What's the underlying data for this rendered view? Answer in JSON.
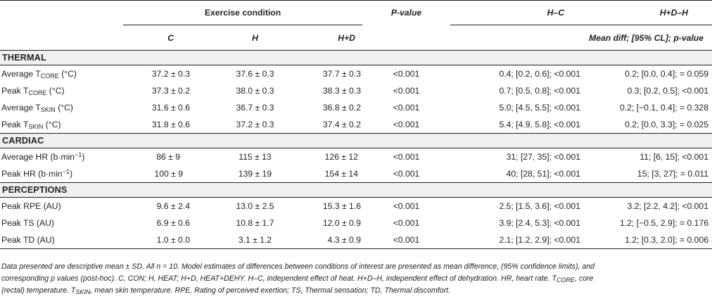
{
  "header": {
    "exercise_condition": "Exercise condition",
    "p_value": "P-value",
    "h_c": "H–C",
    "h_d_h": "H+D–H",
    "col_c": "C",
    "col_h": "H",
    "col_hd": "H+D",
    "mean_diff": "Mean diff; [95% CL]; p-value"
  },
  "sections": {
    "thermal": "THERMAL",
    "cardiac": "CARDIAC",
    "perceptions": "PERCEPTIONS"
  },
  "rows": {
    "avg_tcore": {
      "label_pre": "Average T",
      "label_sub": "CORE",
      "label_post": " (°C)",
      "c": "37.2 ± 0.3",
      "h": "37.6 ± 0.3",
      "hd": "37.7 ± 0.3",
      "p": "<0.001",
      "hc": "0.4; [0.2, 0.6]; <0.001",
      "hdh": "0.2; [0.0, 0.4]; = 0.059"
    },
    "peak_tcore": {
      "label_pre": "Peak T",
      "label_sub": "CORE",
      "label_post": " (°C)",
      "c": "37.3 ± 0.2",
      "h": "38.0 ± 0.3",
      "hd": "38.3 ± 0.3",
      "p": "<0.001",
      "hc": "0.7; [0.5, 0.8]; <0.001",
      "hdh": "0.3; [0.2, 0.5]; <0.001"
    },
    "avg_tskin": {
      "label_pre": "Average T",
      "label_sub": "SKIN",
      "label_post": " (°C)",
      "c": "31.6 ± 0.6",
      "h": "36.7 ± 0.3",
      "hd": "36.8 ± 0.2",
      "p": "<0.001",
      "hc": "5.0; [4.5, 5.5]; <0.001",
      "hdh": "0.2; [−0.1, 0.4]; = 0.328"
    },
    "peak_tskin": {
      "label_pre": "Peak T",
      "label_sub": "SKIN",
      "label_post": " (°C)",
      "c": "31.8 ± 0.6",
      "h": "37.2 ± 0.3",
      "hd": "37.4 ± 0.2",
      "p": "<0.001",
      "hc": "5.4; [4.9, 5.8]; <0.001",
      "hdh": "0.2; [0.0, 3.3]; = 0.025"
    },
    "avg_hr": {
      "label_pre": "Average HR (b·min",
      "label_sup": "−1",
      "label_post": ")",
      "c": "86 ± 9",
      "h": "115 ± 13",
      "hd": "126 ± 12",
      "p": "<0.001",
      "hc": "31; [27, 35]; <0.001",
      "hdh": "11; [6, 15]; <0.001"
    },
    "peak_hr": {
      "label_pre": "Peak HR (b·min",
      "label_sup": "−1",
      "label_post": ")",
      "c": "100 ± 9",
      "h": "139 ± 19",
      "hd": "154 ± 14",
      "p": "<0.001",
      "hc": "40; [28, 51]; <0.001",
      "hdh": "15; [3, 27]; = 0.011"
    },
    "peak_rpe": {
      "label": "Peak RPE (AU)",
      "c": "9.6 ± 2.4",
      "h": "13.0 ± 2.5",
      "hd": "15.3 ± 1.6",
      "p": "<0.001",
      "hc": "2.5; [1.5, 3.6]; <0.001",
      "hdh": "3.2; [2.2, 4.2]; <0.001"
    },
    "peak_ts": {
      "label": "Peak TS (AU)",
      "c": "6.9 ± 0.6",
      "h": "10.8 ± 1.7",
      "hd": "12.0 ± 0.9",
      "p": "<0.001",
      "hc": "3.9; [2.4, 5.3]; <0.001",
      "hdh": "1.2; [−0.5, 2.9]; = 0.176"
    },
    "peak_td": {
      "label": "Peak TD (AU)",
      "c": "1.0 ± 0.0",
      "h": "3.1 ± 1.2",
      "hd": "4.3 ± 0.9",
      "p": "<0.001",
      "hc": "2.1; [1.2, 2.9]; <0.001",
      "hdh": "1.2; [0.3, 2.0]; = 0.006"
    }
  },
  "footnote": {
    "line1": "Data presented are descriptive mean ± SD. All n = 10. Model estimates of differences between conditions of interest are presented as mean difference, (95% confidence limits), and",
    "line2": "corresponding p values (post-hoc). C, CON; H, HEAT; H+D, HEAT+DEHY. H–C, independent effect of heat. H+D–H, independent effect of dehydration. HR, heart rate. T",
    "line2_sub": "CORE",
    "line2_end": ", core",
    "line3": "(rectal) temperature. T",
    "line3_sub": "SKIN",
    "line3_end": ", mean skin temperature. RPE, Rating of perceived exertion; TS, Thermal sensation; TD, Thermal discomfort."
  }
}
